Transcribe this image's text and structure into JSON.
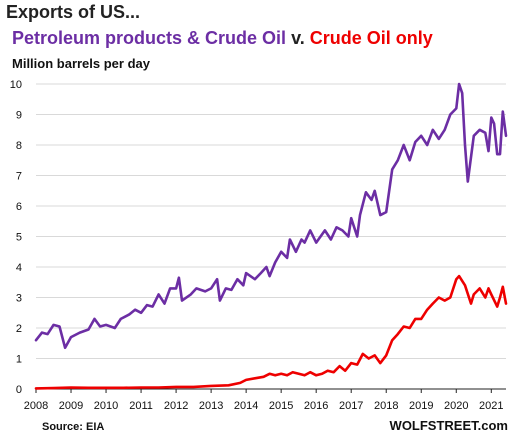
{
  "header": {
    "line1": "Exports of US...",
    "line2_part1": "Petroleum products",
    "line2_amp": " & ",
    "line2_part2": "Crude Oil",
    "line2_v": " v. ",
    "line2_part3": "Crude Oil only"
  },
  "footer": {
    "source": "Source: EIA",
    "brand": "WOLFSTREET.com"
  },
  "colors": {
    "petroleum": "#6c2ea4",
    "crude": "#ee0000",
    "grid": "#d9d9d9"
  },
  "chart_data": {
    "type": "line",
    "title": "",
    "xlabel": "",
    "ylabel": "Million barrels per day",
    "xlim": [
      2008.0,
      2021.42
    ],
    "ylim": [
      0,
      10
    ],
    "yticks": [
      "0",
      "1",
      "2",
      "3",
      "4",
      "5",
      "6",
      "7",
      "8",
      "9",
      "10"
    ],
    "xticks": [
      "2008",
      "2009",
      "2010",
      "2011",
      "2012",
      "2013",
      "2014",
      "2015",
      "2016",
      "2017",
      "2018",
      "2019",
      "2020",
      "2021"
    ],
    "grid": true,
    "series": [
      {
        "name": "Petroleum products & Crude Oil",
        "color": "#6c2ea4",
        "points": [
          [
            2008.0,
            1.6
          ],
          [
            2008.17,
            1.85
          ],
          [
            2008.33,
            1.8
          ],
          [
            2008.5,
            2.1
          ],
          [
            2008.67,
            2.05
          ],
          [
            2008.83,
            1.35
          ],
          [
            2009.0,
            1.7
          ],
          [
            2009.25,
            1.85
          ],
          [
            2009.5,
            1.95
          ],
          [
            2009.67,
            2.3
          ],
          [
            2009.83,
            2.05
          ],
          [
            2010.0,
            2.1
          ],
          [
            2010.25,
            2.0
          ],
          [
            2010.42,
            2.3
          ],
          [
            2010.67,
            2.45
          ],
          [
            2010.83,
            2.6
          ],
          [
            2011.0,
            2.5
          ],
          [
            2011.17,
            2.75
          ],
          [
            2011.33,
            2.7
          ],
          [
            2011.5,
            3.1
          ],
          [
            2011.67,
            2.8
          ],
          [
            2011.83,
            3.3
          ],
          [
            2012.0,
            3.3
          ],
          [
            2012.08,
            3.65
          ],
          [
            2012.17,
            2.9
          ],
          [
            2012.42,
            3.1
          ],
          [
            2012.58,
            3.3
          ],
          [
            2012.83,
            3.2
          ],
          [
            2013.0,
            3.3
          ],
          [
            2013.17,
            3.6
          ],
          [
            2013.25,
            2.9
          ],
          [
            2013.42,
            3.3
          ],
          [
            2013.58,
            3.25
          ],
          [
            2013.75,
            3.6
          ],
          [
            2013.92,
            3.4
          ],
          [
            2014.0,
            3.8
          ],
          [
            2014.25,
            3.6
          ],
          [
            2014.42,
            3.8
          ],
          [
            2014.58,
            4.0
          ],
          [
            2014.67,
            3.7
          ],
          [
            2014.83,
            4.15
          ],
          [
            2015.0,
            4.5
          ],
          [
            2015.17,
            4.3
          ],
          [
            2015.25,
            4.9
          ],
          [
            2015.42,
            4.5
          ],
          [
            2015.58,
            4.9
          ],
          [
            2015.67,
            4.8
          ],
          [
            2015.83,
            5.2
          ],
          [
            2016.0,
            4.8
          ],
          [
            2016.25,
            5.2
          ],
          [
            2016.42,
            4.9
          ],
          [
            2016.58,
            5.3
          ],
          [
            2016.75,
            5.2
          ],
          [
            2016.92,
            5.0
          ],
          [
            2017.0,
            5.6
          ],
          [
            2017.17,
            5.0
          ],
          [
            2017.25,
            5.7
          ],
          [
            2017.42,
            6.45
          ],
          [
            2017.58,
            6.2
          ],
          [
            2017.67,
            6.5
          ],
          [
            2017.83,
            5.7
          ],
          [
            2018.0,
            5.8
          ],
          [
            2018.17,
            7.2
          ],
          [
            2018.33,
            7.5
          ],
          [
            2018.5,
            8.0
          ],
          [
            2018.67,
            7.5
          ],
          [
            2018.83,
            8.1
          ],
          [
            2019.0,
            8.3
          ],
          [
            2019.17,
            8.0
          ],
          [
            2019.33,
            8.5
          ],
          [
            2019.5,
            8.2
          ],
          [
            2019.67,
            8.5
          ],
          [
            2019.83,
            9.0
          ],
          [
            2020.0,
            9.2
          ],
          [
            2020.08,
            10.0
          ],
          [
            2020.17,
            9.7
          ],
          [
            2020.25,
            8.0
          ],
          [
            2020.33,
            6.8
          ],
          [
            2020.5,
            8.3
          ],
          [
            2020.67,
            8.5
          ],
          [
            2020.83,
            8.4
          ],
          [
            2020.92,
            7.8
          ],
          [
            2021.0,
            8.9
          ],
          [
            2021.08,
            8.7
          ],
          [
            2021.17,
            7.7
          ],
          [
            2021.25,
            7.7
          ],
          [
            2021.33,
            9.1
          ],
          [
            2021.42,
            8.3
          ]
        ]
      },
      {
        "name": "Crude Oil only",
        "color": "#ee0000",
        "points": [
          [
            2008.0,
            0.02
          ],
          [
            2008.5,
            0.03
          ],
          [
            2009.0,
            0.05
          ],
          [
            2009.5,
            0.04
          ],
          [
            2010.0,
            0.04
          ],
          [
            2010.5,
            0.04
          ],
          [
            2011.0,
            0.05
          ],
          [
            2011.5,
            0.05
          ],
          [
            2012.0,
            0.07
          ],
          [
            2012.5,
            0.07
          ],
          [
            2013.0,
            0.1
          ],
          [
            2013.5,
            0.12
          ],
          [
            2013.83,
            0.2
          ],
          [
            2014.0,
            0.3
          ],
          [
            2014.25,
            0.35
          ],
          [
            2014.5,
            0.4
          ],
          [
            2014.67,
            0.5
          ],
          [
            2014.83,
            0.45
          ],
          [
            2015.0,
            0.5
          ],
          [
            2015.17,
            0.45
          ],
          [
            2015.33,
            0.55
          ],
          [
            2015.5,
            0.5
          ],
          [
            2015.67,
            0.45
          ],
          [
            2015.83,
            0.55
          ],
          [
            2016.0,
            0.45
          ],
          [
            2016.17,
            0.5
          ],
          [
            2016.33,
            0.6
          ],
          [
            2016.5,
            0.55
          ],
          [
            2016.67,
            0.75
          ],
          [
            2016.83,
            0.6
          ],
          [
            2017.0,
            0.85
          ],
          [
            2017.17,
            0.8
          ],
          [
            2017.33,
            1.15
          ],
          [
            2017.5,
            1.0
          ],
          [
            2017.67,
            1.1
          ],
          [
            2017.83,
            0.85
          ],
          [
            2018.0,
            1.1
          ],
          [
            2018.17,
            1.6
          ],
          [
            2018.33,
            1.8
          ],
          [
            2018.5,
            2.05
          ],
          [
            2018.67,
            2.0
          ],
          [
            2018.83,
            2.3
          ],
          [
            2019.0,
            2.3
          ],
          [
            2019.17,
            2.6
          ],
          [
            2019.33,
            2.8
          ],
          [
            2019.5,
            3.0
          ],
          [
            2019.67,
            2.9
          ],
          [
            2019.83,
            3.0
          ],
          [
            2020.0,
            3.6
          ],
          [
            2020.08,
            3.7
          ],
          [
            2020.25,
            3.4
          ],
          [
            2020.42,
            2.8
          ],
          [
            2020.5,
            3.1
          ],
          [
            2020.67,
            3.3
          ],
          [
            2020.83,
            3.0
          ],
          [
            2020.92,
            3.3
          ],
          [
            2021.0,
            3.1
          ],
          [
            2021.17,
            2.7
          ],
          [
            2021.25,
            3.0
          ],
          [
            2021.33,
            3.35
          ],
          [
            2021.42,
            2.8
          ]
        ]
      }
    ]
  }
}
